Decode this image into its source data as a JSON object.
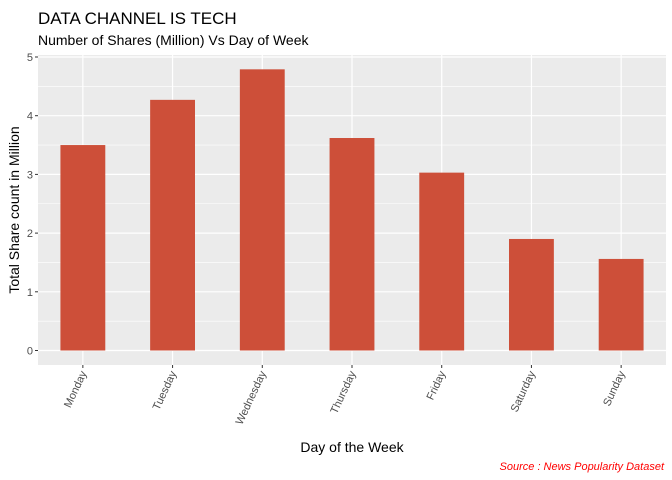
{
  "chart_data": {
    "type": "bar",
    "title": "DATA CHANNEL IS TECH",
    "subtitle": "Number of Shares (Million) Vs Day of Week",
    "xlabel": "Day of the Week",
    "ylabel": "Total Share count in Million",
    "categories": [
      "Monday",
      "Tuesday",
      "Wednesday",
      "Thursday",
      "Friday",
      "Saturday",
      "Sunday"
    ],
    "values": [
      3.5,
      4.27,
      4.79,
      3.62,
      3.03,
      1.9,
      1.56
    ],
    "ylim": [
      0,
      5
    ],
    "yticks": [
      "0",
      "1",
      "2",
      "3",
      "4",
      "5"
    ],
    "grid": true,
    "caption": "Source : News Popularity Dataset",
    "colors": {
      "bar": "#CD4F39",
      "panel": "#EBEBEB",
      "grid": "#FFFFFF",
      "caption": "#FF0000"
    }
  }
}
